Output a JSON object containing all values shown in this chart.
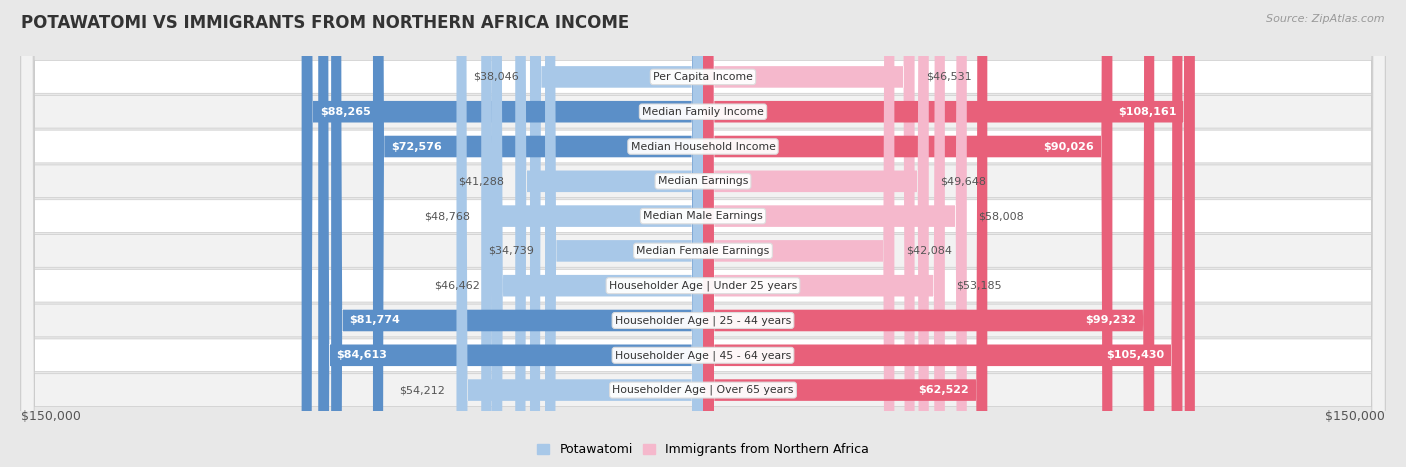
{
  "title": "POTAWATOMI VS IMMIGRANTS FROM NORTHERN AFRICA INCOME",
  "source": "Source: ZipAtlas.com",
  "categories": [
    "Per Capita Income",
    "Median Family Income",
    "Median Household Income",
    "Median Earnings",
    "Median Male Earnings",
    "Median Female Earnings",
    "Householder Age | Under 25 years",
    "Householder Age | 25 - 44 years",
    "Householder Age | 45 - 64 years",
    "Householder Age | Over 65 years"
  ],
  "potawatomi_values": [
    38046,
    88265,
    72576,
    41288,
    48768,
    34739,
    46462,
    81774,
    84613,
    54212
  ],
  "immigrant_values": [
    46531,
    108161,
    90026,
    49648,
    58008,
    42084,
    53185,
    99232,
    105430,
    62522
  ],
  "potawatomi_labels": [
    "$38,046",
    "$88,265",
    "$72,576",
    "$41,288",
    "$48,768",
    "$34,739",
    "$46,462",
    "$81,774",
    "$84,613",
    "$54,212"
  ],
  "immigrant_labels": [
    "$46,531",
    "$108,161",
    "$90,026",
    "$49,648",
    "$58,008",
    "$42,084",
    "$53,185",
    "$99,232",
    "$105,430",
    "$62,522"
  ],
  "pot_color_light": "#a8c8e8",
  "pot_color_dark": "#5b8fc8",
  "imm_color_light": "#f5b8cc",
  "imm_color_dark": "#e8607a",
  "large_threshold": 60000,
  "max_value": 150000,
  "legend_label_1": "Potawatomi",
  "legend_label_2": "Immigrants from Northern Africa",
  "x_label_left": "$150,000",
  "x_label_right": "$150,000",
  "background_color": "#e8e8e8",
  "row_bg_even": "#ffffff",
  "row_bg_odd": "#f2f2f2"
}
